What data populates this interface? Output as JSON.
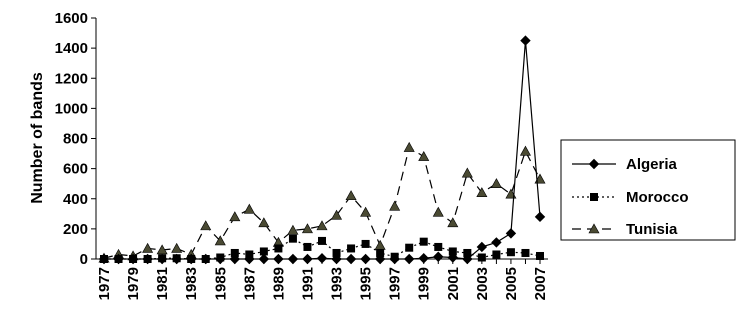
{
  "chart_data": {
    "type": "line",
    "ylabel": "Number of bands",
    "ylim": [
      0,
      1600
    ],
    "yticks": [
      "0",
      "200",
      "400",
      "600",
      "800",
      "1000",
      "1200",
      "1400",
      "1600"
    ],
    "x": [
      1977,
      1978,
      1979,
      1980,
      1981,
      1982,
      1983,
      1984,
      1985,
      1986,
      1987,
      1988,
      1989,
      1990,
      1991,
      1992,
      1993,
      1994,
      1995,
      1996,
      1997,
      1998,
      1999,
      2000,
      2001,
      2002,
      2003,
      2004,
      2005,
      2006,
      2007
    ],
    "xticks": [
      "1977",
      "1979",
      "1981",
      "1983",
      "1985",
      "1987",
      "1989",
      "1991",
      "1993",
      "1995",
      "1997",
      "1999",
      "2001",
      "2003",
      "2005",
      "2007"
    ],
    "legend_position": "right",
    "grid": false,
    "series": [
      {
        "name": "Algeria",
        "marker": "diamond",
        "line": "solid",
        "color": "#000000",
        "values": [
          0,
          0,
          0,
          0,
          0,
          0,
          0,
          0,
          0,
          0,
          0,
          0,
          0,
          0,
          0,
          5,
          0,
          0,
          0,
          0,
          0,
          0,
          5,
          15,
          10,
          0,
          80,
          110,
          170,
          1450,
          280
        ]
      },
      {
        "name": "Morocco",
        "marker": "square",
        "line": "dotted",
        "color": "#000000",
        "values": [
          0,
          0,
          0,
          0,
          5,
          5,
          0,
          0,
          10,
          40,
          30,
          50,
          70,
          135,
          80,
          120,
          40,
          70,
          100,
          40,
          15,
          75,
          115,
          80,
          50,
          40,
          10,
          30,
          45,
          40,
          20
        ]
      },
      {
        "name": "Tunisia",
        "marker": "triangle",
        "line": "dashed",
        "color": "#4a4a33",
        "values": [
          5,
          30,
          20,
          70,
          60,
          70,
          30,
          220,
          120,
          280,
          330,
          240,
          110,
          190,
          200,
          220,
          290,
          420,
          310,
          90,
          350,
          740,
          680,
          310,
          240,
          570,
          440,
          500,
          430,
          715,
          530
        ]
      }
    ]
  }
}
